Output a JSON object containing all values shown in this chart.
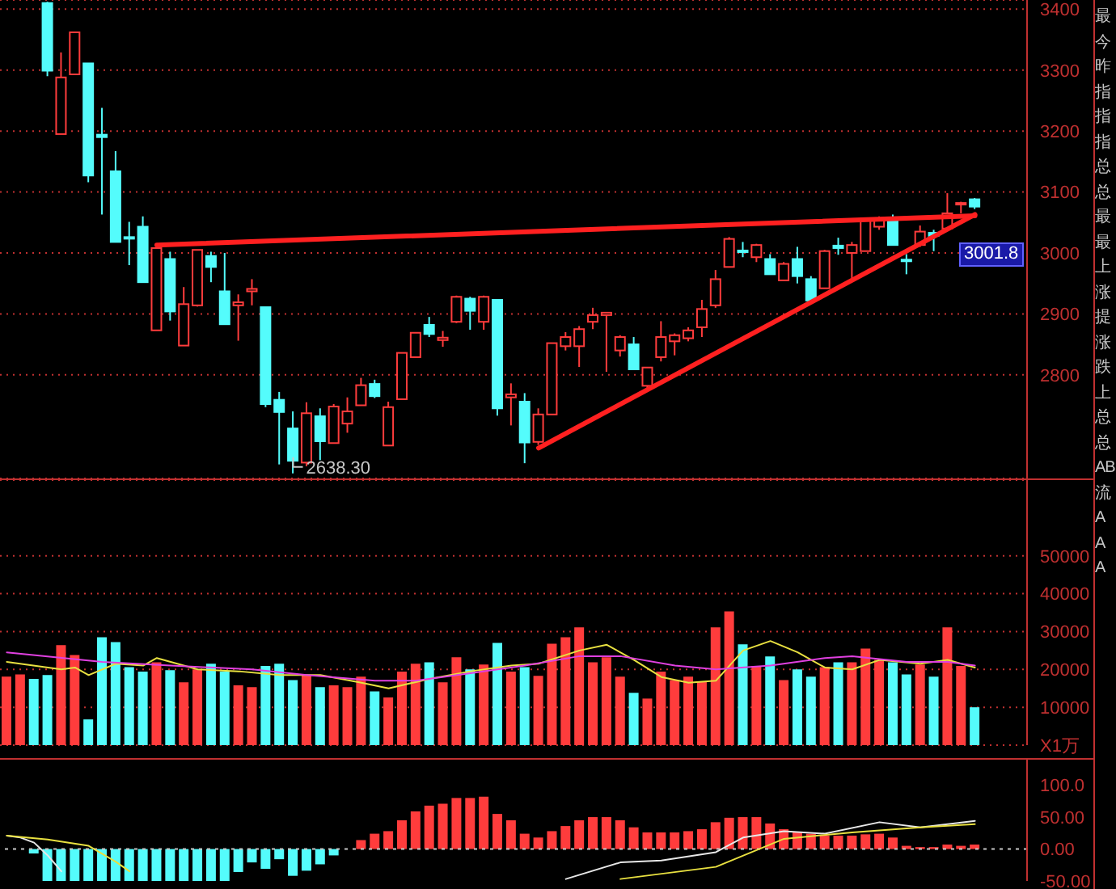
{
  "chart_data": [
    {
      "type": "candlestick",
      "categories": [
        null,
        null,
        null,
        null,
        null,
        null,
        null,
        null,
        null,
        null,
        null,
        null,
        null,
        null,
        null,
        null,
        null,
        null,
        null,
        null,
        null,
        null,
        null,
        null,
        null,
        null,
        null,
        null,
        null,
        null,
        null,
        null,
        null,
        null,
        null,
        null,
        null,
        null,
        null,
        null,
        null,
        null,
        null,
        null,
        null,
        null,
        null,
        null,
        null,
        null,
        null,
        null,
        null,
        null,
        null,
        null,
        null,
        null,
        null,
        null,
        null,
        null,
        null,
        null,
        null,
        null,
        null,
        null,
        null,
        null,
        null,
        null
      ],
      "ohlc": [
        null,
        null,
        null,
        [
          3410,
          3412,
          3290,
          3299
        ],
        [
          3195,
          3329,
          3195,
          3288
        ],
        [
          3293,
          3362,
          3293,
          3362
        ],
        [
          3311,
          3311,
          3116,
          3127
        ],
        [
          3194,
          3238,
          3063,
          3190
        ],
        [
          3134,
          3167,
          3018,
          3018
        ],
        [
          3026,
          3051,
          2980,
          3024
        ],
        [
          3043,
          3060,
          2952,
          2952
        ],
        [
          2873,
          3008,
          2873,
          3008
        ],
        [
          2990,
          3002,
          2889,
          2904
        ],
        [
          2848,
          2944,
          2848,
          2916
        ],
        [
          2914,
          3005,
          2912,
          3005
        ],
        [
          2995,
          3002,
          2952,
          2977
        ],
        [
          2937,
          3000,
          2883,
          2883
        ],
        [
          2914,
          2932,
          2856,
          2919
        ],
        [
          2937,
          2957,
          2914,
          2941
        ],
        [
          2911,
          2911,
          2747,
          2752
        ],
        [
          2759,
          2772,
          2653,
          2739
        ],
        [
          2712,
          2740,
          2638.3,
          2659
        ],
        [
          2656,
          2755,
          2650,
          2737
        ],
        [
          2732,
          2745,
          2660,
          2691
        ],
        [
          2688,
          2752,
          2688,
          2748
        ],
        [
          2720,
          2763,
          2705,
          2740
        ],
        [
          2750,
          2795,
          2750,
          2783
        ],
        [
          2785,
          2792,
          2762,
          2765
        ],
        [
          2684,
          2756,
          2684,
          2747
        ],
        [
          2760,
          2836,
          2760,
          2836
        ],
        [
          2829,
          2869,
          2829,
          2869
        ],
        [
          2882,
          2895,
          2862,
          2867
        ],
        [
          2857,
          2872,
          2846,
          2861
        ],
        [
          2887,
          2930,
          2885,
          2928
        ],
        [
          2925,
          2928,
          2874,
          2905
        ],
        [
          2887,
          2930,
          2874,
          2928
        ],
        [
          2923,
          2923,
          2733,
          2745
        ],
        [
          2763,
          2786,
          2717,
          2768
        ],
        [
          2756,
          2770,
          2655,
          2689
        ],
        [
          2690,
          2745,
          2685,
          2735
        ],
        [
          2735,
          2852,
          2735,
          2852
        ],
        [
          2847,
          2870,
          2840,
          2862
        ],
        [
          2847,
          2880,
          2813,
          2875
        ],
        [
          2887,
          2910,
          2875,
          2898
        ],
        [
          2898,
          2902,
          2805,
          2902
        ],
        [
          2840,
          2865,
          2830,
          2862
        ],
        [
          2850,
          2862,
          2809,
          2809
        ],
        [
          2782,
          2812,
          2775,
          2812
        ],
        [
          2829,
          2888,
          2822,
          2862
        ],
        [
          2855,
          2868,
          2832,
          2865
        ],
        [
          2860,
          2878,
          2855,
          2873
        ],
        [
          2878,
          2923,
          2862,
          2908
        ],
        [
          2914,
          2972,
          2910,
          2957
        ],
        [
          2977,
          3026,
          2977,
          3023
        ],
        [
          3004,
          3018,
          2993,
          3002
        ],
        [
          2993,
          3015,
          2985,
          3013
        ],
        [
          2990,
          2998,
          2965,
          2965
        ],
        [
          2955,
          2985,
          2955,
          2982
        ],
        [
          2990,
          3010,
          2950,
          2962
        ],
        [
          2957,
          2962,
          2918,
          2922
        ],
        [
          2942,
          3005,
          2942,
          3003
        ],
        [
          3012,
          3025,
          2997,
          3008
        ],
        [
          3000,
          3018,
          2957,
          3013
        ],
        [
          3003,
          3058,
          3003,
          3055
        ],
        [
          3043,
          3060,
          3038,
          3055
        ],
        [
          3055,
          3063,
          3013,
          3013
        ],
        [
          2989,
          2998,
          2965,
          2987
        ],
        [
          3013,
          3045,
          3010,
          3035
        ],
        [
          3033,
          3038,
          3003,
          3028
        ],
        [
          3040,
          3098,
          3040,
          3065
        ],
        [
          3080,
          3084,
          3065,
          3082
        ],
        [
          3088,
          3090,
          3072,
          3076
        ]
      ],
      "colors": [
        null,
        null,
        null,
        "#54fcfc",
        "#ff3c3c",
        "#ff3c3c",
        "#54fcfc",
        "#54fcfc",
        "#54fcfc",
        "#54fcfc",
        "#54fcfc",
        "#ff3c3c",
        "#54fcfc",
        "#ff3c3c",
        "#ff3c3c",
        "#54fcfc",
        "#54fcfc",
        "#ff3c3c",
        "#ff3c3c",
        "#54fcfc",
        "#54fcfc",
        "#54fcfc",
        "#ff3c3c",
        "#54fcfc",
        "#ff3c3c",
        "#ff3c3c",
        "#ff3c3c",
        "#54fcfc",
        "#ff3c3c",
        "#ff3c3c",
        "#ff3c3c",
        "#54fcfc",
        "#ff3c3c",
        "#ff3c3c",
        "#54fcfc",
        "#ff3c3c",
        "#54fcfc",
        "#ff3c3c",
        "#54fcfc",
        "#ff3c3c",
        "#ff3c3c",
        "#ff3c3c",
        "#ff3c3c",
        "#ff3c3c",
        "#ff3c3c",
        "#ff3c3c",
        "#54fcfc",
        "#ff3c3c",
        "#ff3c3c",
        "#ff3c3c",
        "#ff3c3c",
        "#ff3c3c",
        "#ff3c3c",
        "#ff3c3c",
        "#54fcfc",
        "#ff3c3c",
        "#54fcfc",
        "#ff3c3c",
        "#54fcfc",
        "#54fcfc",
        "#ff3c3c",
        "#54fcfc",
        "#ff3c3c",
        "#ff3c3c",
        "#ff3c3c",
        "#54fcfc",
        "#54fcfc",
        "#ff3c3c",
        "#54fcfc",
        "#ff3c3c",
        "#ff3c3c",
        "#54fcfc"
      ],
      "series": [
        {
          "type": "line",
          "color": "#ff2020",
          "values": [
            null,
            null,
            null,
            null,
            null,
            null,
            null,
            null,
            null,
            null,
            null,
            3013,
            null,
            null,
            null,
            null,
            null,
            null,
            null,
            null,
            null,
            null,
            null,
            null,
            null,
            null,
            null,
            null,
            null,
            null,
            null,
            null,
            null,
            null,
            null,
            null,
            null,
            null,
            null,
            null,
            null,
            null,
            null,
            null,
            null,
            null,
            null,
            null,
            null,
            null,
            null,
            null,
            null,
            null,
            null,
            null,
            null,
            null,
            null,
            null,
            null,
            null,
            null,
            null,
            null,
            null,
            null,
            null,
            null,
            null,
            null,
            3061
          ]
        },
        {
          "type": "line",
          "color": "#ff2020",
          "values": [
            null,
            null,
            null,
            null,
            null,
            null,
            null,
            null,
            null,
            null,
            null,
            null,
            null,
            null,
            null,
            null,
            null,
            null,
            null,
            null,
            null,
            null,
            null,
            null,
            null,
            null,
            null,
            null,
            null,
            null,
            null,
            null,
            null,
            null,
            null,
            null,
            null,
            null,
            null,
            2680,
            null,
            null,
            null,
            null,
            null,
            null,
            null,
            null,
            null,
            null,
            null,
            null,
            null,
            null,
            null,
            null,
            null,
            null,
            null,
            null,
            null,
            null,
            null,
            null,
            null,
            null,
            null,
            null,
            null,
            null,
            null,
            3063
          ]
        }
      ],
      "ylim": [
        2630,
        3415
      ],
      "yticks": [
        2800,
        2900,
        3000,
        3100,
        3200,
        3300,
        3400
      ],
      "grid": "y",
      "tick_labels": "y",
      "annotations": [
        "2638.30",
        "3001.8",
        "最",
        "今",
        "昨",
        "指",
        "指",
        "指",
        "总",
        "总",
        "最",
        "最",
        "上",
        "涨",
        "提",
        "涨",
        "跌",
        "上",
        "总",
        "总",
        "AB",
        "流",
        "A",
        "A",
        "A"
      ]
    },
    {
      "type": "bar",
      "categories": [
        null,
        null,
        null,
        null,
        null,
        null,
        null,
        null,
        null,
        null,
        null,
        null,
        null,
        null,
        null,
        null,
        null,
        null,
        null,
        null,
        null,
        null,
        null,
        null,
        null,
        null,
        null,
        null,
        null,
        null,
        null,
        null,
        null,
        null,
        null,
        null,
        null,
        null,
        null,
        null,
        null,
        null,
        null,
        null,
        null,
        null,
        null,
        null,
        null,
        null,
        null,
        null,
        null,
        null,
        null,
        null,
        null,
        null,
        null,
        null,
        null,
        null,
        null,
        null,
        null,
        null,
        null,
        null,
        null,
        null,
        null,
        null
      ],
      "series": [
        {
          "type": "bar",
          "colors": [
            "#ff3c3c",
            "#ff3c3c",
            "#54fcfc",
            "#54fcfc",
            "#ff3c3c",
            "#ff3c3c",
            "#54fcfc",
            "#54fcfc",
            "#54fcfc",
            "#54fcfc",
            "#54fcfc",
            "#ff3c3c",
            "#54fcfc",
            "#ff3c3c",
            "#ff3c3c",
            "#54fcfc",
            "#54fcfc",
            "#ff3c3c",
            "#ff3c3c",
            "#54fcfc",
            "#54fcfc",
            "#54fcfc",
            "#ff3c3c",
            "#54fcfc",
            "#ff3c3c",
            "#ff3c3c",
            "#ff3c3c",
            "#54fcfc",
            "#ff3c3c",
            "#ff3c3c",
            "#ff3c3c",
            "#54fcfc",
            "#ff3c3c",
            "#ff3c3c",
            "#54fcfc",
            "#ff3c3c",
            "#54fcfc",
            "#ff3c3c",
            "#54fcfc",
            "#ff3c3c",
            "#ff3c3c",
            "#ff3c3c",
            "#ff3c3c",
            "#ff3c3c",
            "#ff3c3c",
            "#ff3c3c",
            "#54fcfc",
            "#ff3c3c",
            "#ff3c3c",
            "#ff3c3c",
            "#ff3c3c",
            "#ff3c3c",
            "#ff3c3c",
            "#ff3c3c",
            "#54fcfc",
            "#ff3c3c",
            "#54fcfc",
            "#ff3c3c",
            "#54fcfc",
            "#54fcfc",
            "#ff3c3c",
            "#54fcfc",
            "#ff3c3c",
            "#ff3c3c",
            "#ff3c3c",
            "#54fcfc",
            "#54fcfc",
            "#ff3c3c",
            "#54fcfc",
            "#ff3c3c",
            "#ff3c3c",
            "#54fcfc"
          ],
          "values": [
            18100,
            18700,
            17500,
            18500,
            26400,
            23800,
            6800,
            28500,
            27200,
            20600,
            19400,
            21900,
            19800,
            16600,
            20000,
            21500,
            19400,
            15800,
            15300,
            20900,
            21500,
            17200,
            18500,
            15300,
            15800,
            15300,
            18100,
            14200,
            12600,
            19400,
            21500,
            21900,
            16600,
            23200,
            20000,
            21300,
            27000,
            19400,
            20600,
            18300,
            26800,
            28500,
            31100,
            21900,
            23200,
            18100,
            13800,
            12300,
            19400,
            17200,
            18100,
            16800,
            31100,
            35300,
            26600,
            20900,
            23400,
            17200,
            20000,
            18100,
            20600,
            21900,
            21900,
            25500,
            22500,
            21900,
            18700,
            21300,
            18100,
            31100,
            20900,
            10000
          ]
        },
        {
          "type": "line",
          "color": "#e8e040",
          "values": [
            22000,
            null,
            null,
            null,
            20000,
            20500,
            18500,
            null,
            21500,
            null,
            21000,
            23000,
            null,
            null,
            20000,
            null,
            null,
            19500,
            null,
            null,
            18500,
            null,
            null,
            18500,
            null,
            null,
            16500,
            null,
            15000,
            null,
            null,
            17500,
            null,
            null,
            19500,
            null,
            null,
            21000,
            null,
            21500,
            null,
            null,
            25000,
            null,
            26500,
            null,
            22500,
            null,
            18000,
            null,
            16500,
            null,
            17000,
            null,
            25000,
            null,
            27500,
            null,
            24500,
            null,
            20500,
            null,
            20000,
            null,
            22500,
            null,
            null,
            21500,
            null,
            22500,
            null,
            20500
          ]
        },
        {
          "type": "line",
          "color": "#e040e0",
          "values": [
            24500,
            null,
            null,
            null,
            null,
            null,
            null,
            22000,
            null,
            null,
            null,
            null,
            21000,
            null,
            null,
            null,
            null,
            null,
            20000,
            null,
            null,
            null,
            18500,
            null,
            null,
            null,
            null,
            17000,
            null,
            null,
            17000,
            null,
            null,
            null,
            19000,
            null,
            null,
            null,
            21000,
            null,
            null,
            null,
            23500,
            null,
            null,
            23500,
            null,
            null,
            null,
            21000,
            null,
            null,
            20000,
            null,
            null,
            null,
            21000,
            null,
            null,
            null,
            23000,
            null,
            23500,
            null,
            null,
            null,
            22000,
            null,
            null,
            22000,
            null,
            21000
          ]
        }
      ],
      "ylim": [
        0,
        70000
      ],
      "yticks": [
        {
          "value": 0,
          "label": "X1万"
        },
        10000,
        20000,
        30000,
        40000,
        50000
      ],
      "grid": "y",
      "tick_labels": "y"
    },
    {
      "type": "bar",
      "categories": [
        null,
        null,
        null,
        null,
        null,
        null,
        null,
        null,
        null,
        null,
        null,
        null,
        null,
        null,
        null,
        null,
        null,
        null,
        null,
        null,
        null,
        null,
        null,
        null,
        null,
        null,
        null,
        null,
        null,
        null,
        null,
        null,
        null,
        null,
        null,
        null,
        null,
        null,
        null,
        null,
        null,
        null,
        null,
        null,
        null,
        null,
        null,
        null,
        null,
        null,
        null,
        null,
        null,
        null,
        null,
        null,
        null,
        null,
        null,
        null,
        null,
        null,
        null,
        null,
        null,
        null,
        null,
        null,
        null,
        null,
        null,
        null
      ],
      "series": [
        {
          "type": "bar",
          "colors": [
            null,
            null,
            "#54fcfc",
            "#54fcfc",
            "#54fcfc",
            "#54fcfc",
            "#54fcfc",
            "#54fcfc",
            "#54fcfc",
            "#54fcfc",
            "#54fcfc",
            "#54fcfc",
            "#54fcfc",
            "#54fcfc",
            "#54fcfc",
            "#54fcfc",
            "#54fcfc",
            "#54fcfc",
            "#54fcfc",
            "#54fcfc",
            "#54fcfc",
            "#54fcfc",
            "#54fcfc",
            "#54fcfc",
            "#54fcfc",
            null,
            "#ff3c3c",
            "#ff3c3c",
            "#ff3c3c",
            "#ff3c3c",
            "#ff3c3c",
            "#ff3c3c",
            "#ff3c3c",
            "#ff3c3c",
            "#ff3c3c",
            "#ff3c3c",
            "#ff3c3c",
            "#ff3c3c",
            "#ff3c3c",
            "#ff3c3c",
            "#ff3c3c",
            "#ff3c3c",
            "#ff3c3c",
            "#ff3c3c",
            "#ff3c3c",
            "#ff3c3c",
            "#ff3c3c",
            "#ff3c3c",
            "#ff3c3c",
            "#ff3c3c",
            "#ff3c3c",
            "#ff3c3c",
            "#ff3c3c",
            "#ff3c3c",
            "#ff3c3c",
            "#ff3c3c",
            "#ff3c3c",
            "#ff3c3c",
            "#ff3c3c",
            "#ff3c3c",
            "#ff3c3c",
            "#ff3c3c",
            "#ff3c3c",
            "#ff3c3c",
            "#ff3c3c",
            "#ff3c3c",
            "#ff3c3c",
            "#ff3c3c",
            "#ff3c3c",
            "#ff3c3c",
            "#ff3c3c",
            "#ff3c3c"
          ],
          "values": [
            null,
            null,
            -7,
            -50,
            -50,
            -50,
            -50,
            -50,
            -50,
            -50,
            -50,
            -50,
            -50,
            -50,
            -50,
            -50,
            -50,
            -36,
            -21,
            -31,
            -16,
            -42,
            -34,
            -24,
            -10,
            null,
            14,
            24,
            28,
            45,
            59,
            68,
            71,
            80,
            80,
            82,
            55,
            45,
            24,
            18,
            28,
            36,
            45,
            50,
            50,
            45,
            34,
            26,
            26,
            26,
            28,
            31,
            42,
            49,
            50,
            50,
            40,
            31,
            26,
            24,
            21,
            21,
            21,
            23,
            24,
            18,
            5,
            3,
            3,
            7,
            5,
            7
          ]
        },
        {
          "type": "line",
          "color": "#e8e8e8",
          "values": [
            21,
            18,
            10,
            -10,
            -35,
            null,
            null,
            null,
            null,
            null,
            null,
            null,
            null,
            null,
            null,
            null,
            null,
            null,
            null,
            null,
            null,
            null,
            null,
            null,
            null,
            null,
            null,
            null,
            null,
            null,
            null,
            null,
            null,
            null,
            null,
            null,
            null,
            null,
            null,
            null,
            null,
            null,
            null,
            null,
            null,
            null,
            null,
            null,
            null,
            null,
            null,
            null,
            null,
            null,
            null,
            null,
            null,
            null,
            null,
            null,
            null,
            null,
            null,
            null,
            null,
            null,
            null,
            null,
            null,
            null,
            null,
            null
          ]
        },
        {
          "type": "line",
          "color": "#e8e8e8",
          "values": [
            null,
            null,
            null,
            null,
            null,
            null,
            null,
            null,
            null,
            null,
            null,
            null,
            null,
            null,
            null,
            null,
            null,
            null,
            null,
            null,
            null,
            null,
            null,
            null,
            null,
            null,
            null,
            null,
            null,
            null,
            null,
            null,
            null,
            null,
            null,
            null,
            null,
            null,
            null,
            null,
            null,
            -47,
            null,
            null,
            null,
            -21,
            null,
            null,
            -18,
            null,
            null,
            null,
            -5,
            null,
            18,
            null,
            null,
            28,
            null,
            null,
            24,
            null,
            null,
            null,
            42,
            null,
            null,
            34,
            null,
            null,
            null,
            44
          ]
        },
        {
          "type": "line",
          "color": "#e8e040",
          "values": [
            21,
            null,
            null,
            15,
            null,
            null,
            5,
            null,
            -20,
            -35,
            null,
            null,
            null,
            null,
            null,
            null,
            null,
            null,
            null,
            null,
            null,
            null,
            null,
            null,
            null,
            null,
            null,
            null,
            null,
            null,
            null,
            null,
            null,
            null,
            null,
            null,
            null,
            null,
            null,
            null,
            null,
            null,
            null,
            null,
            null,
            null,
            null,
            null,
            null,
            null,
            null,
            null,
            null,
            null,
            null,
            null,
            null,
            null,
            null,
            null,
            null,
            null,
            null,
            null,
            null,
            null,
            null,
            null,
            null,
            null,
            null,
            null
          ]
        },
        {
          "type": "line",
          "color": "#e8e040",
          "values": [
            null,
            null,
            null,
            null,
            null,
            null,
            null,
            null,
            null,
            null,
            null,
            null,
            null,
            null,
            null,
            null,
            null,
            null,
            null,
            null,
            null,
            null,
            null,
            null,
            null,
            null,
            null,
            null,
            null,
            null,
            null,
            null,
            null,
            null,
            null,
            null,
            null,
            null,
            null,
            null,
            null,
            null,
            null,
            null,
            null,
            -47,
            null,
            null,
            null,
            null,
            null,
            null,
            -28,
            null,
            null,
            null,
            null,
            16,
            null,
            null,
            null,
            null,
            26,
            null,
            null,
            null,
            null,
            34,
            null,
            null,
            null,
            39
          ]
        }
      ],
      "ylim": [
        -50,
        140
      ],
      "yticks": [
        {
          "value": -50,
          "label": "-50.00"
        },
        {
          "value": 0,
          "label": "0.00"
        },
        {
          "value": 50,
          "label": "50.00"
        },
        {
          "value": 100,
          "label": "100.0"
        }
      ],
      "ref_lines": [
        {
          "axis": "y",
          "value": 0,
          "color": "#c8c8c8",
          "line_style": "dotted"
        }
      ],
      "tick_labels": "y"
    }
  ]
}
